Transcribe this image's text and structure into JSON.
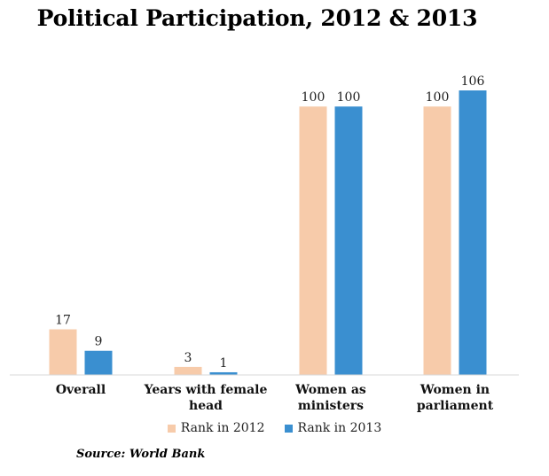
{
  "chart_data": {
    "type": "bar",
    "title": "Political Participation, 2012 & 2013",
    "categories": [
      "Overall",
      "Years with female head",
      "Women as ministers",
      "Women in parliament"
    ],
    "category_lines": [
      [
        "Overall"
      ],
      [
        "Years with female",
        "head"
      ],
      [
        "Women as",
        "ministers"
      ],
      [
        "Women in",
        "parliament"
      ]
    ],
    "series": [
      {
        "name": "Rank in 2012",
        "color": "#f7cbaa",
        "values": [
          17,
          3,
          100,
          100
        ]
      },
      {
        "name": "Rank in 2013",
        "color": "#3a8fd0",
        "values": [
          9,
          1,
          100,
          106
        ]
      }
    ],
    "ylim": [
      0,
      106
    ],
    "grid": false,
    "legend_position": "bottom",
    "source": "Source: World Bank"
  }
}
